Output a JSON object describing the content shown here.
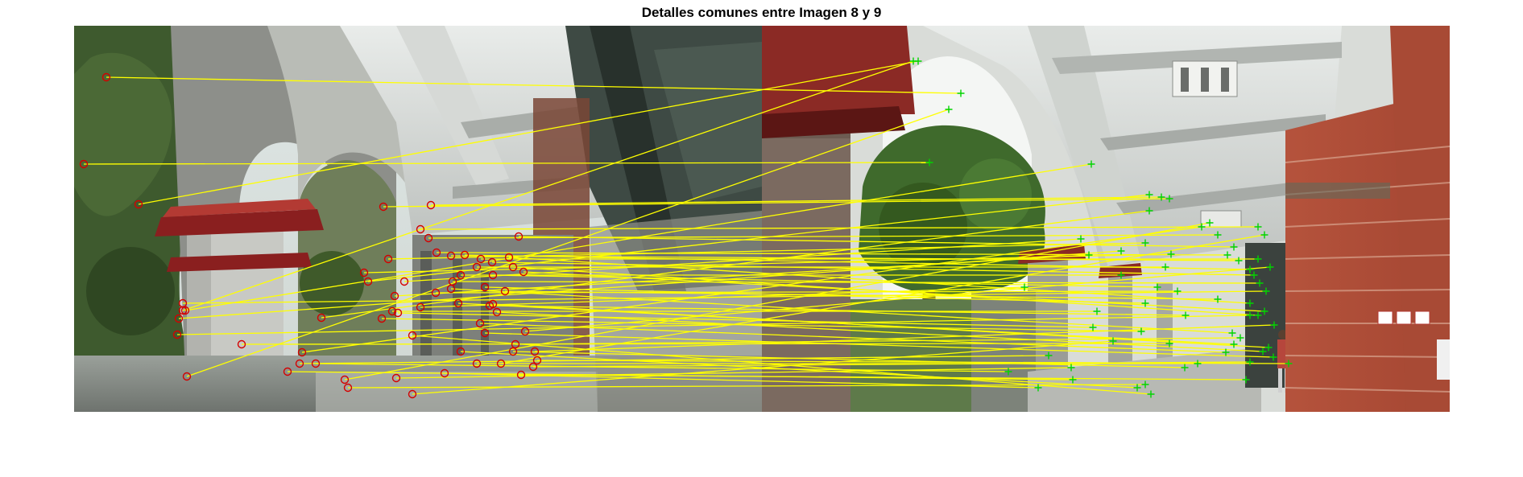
{
  "figure": {
    "title": "Detalles comunes entre Imagen 8 y 9"
  },
  "colors": {
    "match_line": "#ffff00",
    "left_marker": "#d40000",
    "right_marker": "#00d400",
    "background": "#ffffff"
  },
  "marker_styles": {
    "left_image": "red-circle",
    "right_image": "green-plus"
  }
}
